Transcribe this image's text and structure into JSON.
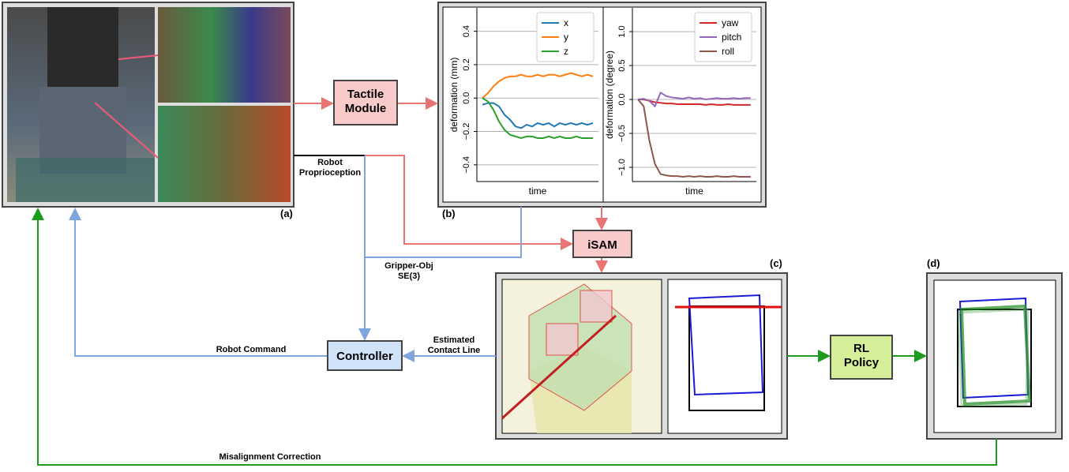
{
  "labels": {
    "a": "(a)",
    "b": "(b)",
    "c": "(c)",
    "d": "(d)",
    "tactile_module": [
      "Tactile",
      "Module"
    ],
    "isam": "iSAM",
    "controller": "Controller",
    "rl_policy": [
      "RL",
      "Policy"
    ],
    "robot_proprioception": [
      "Robot",
      "Proprioception"
    ],
    "gripper_obj": [
      "Gripper-Obj",
      "SE(3)"
    ],
    "estimated_contact_line": [
      "Estimated",
      "Contact Line"
    ],
    "robot_command": "Robot Command",
    "misalignment_correction": "Misalignment Correction"
  },
  "chart_data": [
    {
      "type": "line",
      "xlabel": "time",
      "ylabel": "deformation (mm)",
      "x": [
        0,
        1,
        2,
        3,
        4,
        5,
        6,
        7,
        8,
        9,
        10,
        11,
        12,
        13,
        14,
        15,
        16,
        17,
        18,
        19,
        20
      ],
      "xlim": [
        -1,
        21
      ],
      "ylim": [
        -0.5,
        0.54
      ],
      "yticks": [
        {
          "value": -0.4,
          "label": "−0.4"
        },
        {
          "value": -0.2,
          "label": "−0.2"
        },
        {
          "value": 0,
          "label": "0.0"
        },
        0.2,
        0.4
      ],
      "grid": true,
      "legend": "upper right",
      "series": [
        {
          "name": "x",
          "color": "#1f77b4",
          "values": [
            -0.04,
            -0.03,
            -0.03,
            -0.05,
            -0.1,
            -0.13,
            -0.17,
            -0.18,
            -0.16,
            -0.17,
            -0.15,
            -0.16,
            -0.15,
            -0.17,
            -0.15,
            -0.16,
            -0.15,
            -0.16,
            -0.15,
            -0.16,
            -0.15
          ]
        },
        {
          "name": "y",
          "color": "#ff7f0e",
          "values": [
            0,
            0.03,
            0.07,
            0.1,
            0.12,
            0.13,
            0.13,
            0.14,
            0.13,
            0.13,
            0.14,
            0.13,
            0.14,
            0.14,
            0.13,
            0.14,
            0.15,
            0.14,
            0.13,
            0.14,
            0.13
          ]
        },
        {
          "name": "z",
          "color": "#2ca02c",
          "values": [
            0,
            -0.02,
            -0.07,
            -0.14,
            -0.19,
            -0.22,
            -0.23,
            -0.24,
            -0.23,
            -0.23,
            -0.24,
            -0.24,
            -0.23,
            -0.24,
            -0.23,
            -0.24,
            -0.24,
            -0.23,
            -0.24,
            -0.24,
            -0.24
          ]
        }
      ]
    },
    {
      "type": "line",
      "xlabel": "time",
      "ylabel": "deformation (degree)",
      "x": [
        0,
        1,
        2,
        3,
        4,
        5,
        6,
        7,
        8,
        9,
        10,
        11,
        12,
        13,
        14,
        15,
        16,
        17,
        18,
        19,
        20
      ],
      "xlim": [
        -1,
        21
      ],
      "ylim": [
        -1.21,
        1.35
      ],
      "yticks": [
        {
          "value": -1,
          "label": "−1.0"
        },
        {
          "value": -0.5,
          "label": "−0.5"
        },
        {
          "value": 0,
          "label": "0.0"
        },
        0.5,
        {
          "value": 1,
          "label": "1.0"
        }
      ],
      "grid": true,
      "legend": "upper right",
      "series": [
        {
          "name": "yaw",
          "color": "#d62728",
          "values": [
            0,
            0,
            -0.02,
            -0.04,
            -0.05,
            -0.06,
            -0.06,
            -0.07,
            -0.07,
            -0.07,
            -0.07,
            -0.07,
            -0.08,
            -0.07,
            -0.08,
            -0.08,
            -0.07,
            -0.08,
            -0.08,
            -0.08,
            -0.08
          ]
        },
        {
          "name": "pitch",
          "color": "#9467bd",
          "values": [
            0,
            0.01,
            -0.02,
            -0.1,
            0.1,
            0.05,
            0.03,
            0.02,
            0.01,
            0.03,
            0.01,
            0.02,
            0,
            0.01,
            0.02,
            0.01,
            0.01,
            0.02,
            0.01,
            0.02,
            0.02
          ]
        },
        {
          "name": "roll",
          "color": "#8c564b",
          "values": [
            0,
            -0.1,
            -0.6,
            -0.95,
            -1.1,
            -1.12,
            -1.13,
            -1.13,
            -1.14,
            -1.13,
            -1.14,
            -1.13,
            -1.14,
            -1.14,
            -1.13,
            -1.14,
            -1.14,
            -1.13,
            -1.14,
            -1.14,
            -1.14
          ]
        }
      ]
    }
  ]
}
